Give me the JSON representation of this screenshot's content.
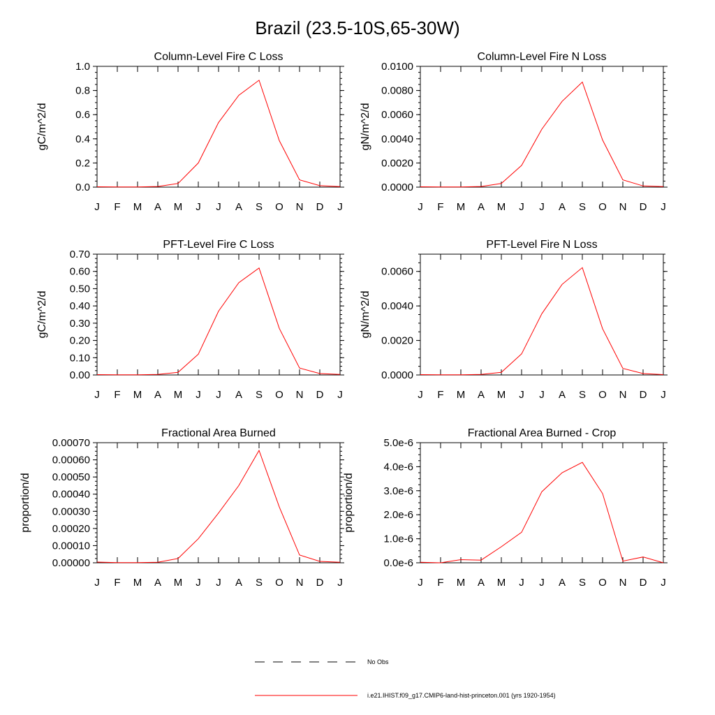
{
  "figure_title": "Brazil (23.5-10S,65-30W)",
  "legend": {
    "obs_label": "No Obs",
    "model_label": "i.e21.IHIST.f09_g17.CMIP6-land-hist-princeton.001 (yrs 1920-1954)",
    "obs_line_color": "#000000",
    "model_line_color": "#ff0000"
  },
  "chart_data": [
    {
      "type": "line",
      "title": "Column-Level Fire C Loss",
      "xlabel": "",
      "ylabel": "gC/m^2/d",
      "x": [
        "J",
        "F",
        "M",
        "A",
        "M",
        "J",
        "J",
        "A",
        "S",
        "O",
        "N",
        "D",
        "J"
      ],
      "ylim": [
        0,
        1.0
      ],
      "yticks": [
        "0.0",
        "0.2",
        "0.4",
        "0.6",
        "0.8",
        "1.0"
      ],
      "ytick_values": [
        0,
        0.2,
        0.4,
        0.6,
        0.8,
        1.0
      ],
      "series": [
        {
          "color": "#ff0000",
          "values": [
            0.003,
            0.002,
            0.002,
            0.005,
            0.03,
            0.2,
            0.535,
            0.76,
            0.885,
            0.385,
            0.06,
            0.012,
            0.004
          ]
        }
      ]
    },
    {
      "type": "line",
      "title": "Column-Level Fire N Loss",
      "xlabel": "",
      "ylabel": "gN/m^2/d",
      "x": [
        "J",
        "F",
        "M",
        "A",
        "M",
        "J",
        "J",
        "A",
        "S",
        "O",
        "N",
        "D",
        "J"
      ],
      "ylim": [
        0,
        0.01
      ],
      "yticks": [
        "0.0000",
        "0.0020",
        "0.0040",
        "0.0060",
        "0.0080",
        "0.0100"
      ],
      "ytick_values": [
        0,
        0.002,
        0.004,
        0.006,
        0.008,
        0.01
      ],
      "series": [
        {
          "color": "#ff0000",
          "values": [
            3e-05,
            2e-05,
            2e-05,
            5e-05,
            0.0003,
            0.0018,
            0.0048,
            0.0071,
            0.0087,
            0.0039,
            0.0006,
            0.0001,
            4e-05
          ]
        }
      ]
    },
    {
      "type": "line",
      "title": "PFT-Level Fire C Loss",
      "xlabel": "",
      "ylabel": "gC/m^2/d",
      "x": [
        "J",
        "F",
        "M",
        "A",
        "M",
        "J",
        "J",
        "A",
        "S",
        "O",
        "N",
        "D",
        "J"
      ],
      "ylim": [
        0,
        0.7
      ],
      "yticks": [
        "0.00",
        "0.10",
        "0.20",
        "0.30",
        "0.40",
        "0.50",
        "0.60",
        "0.70"
      ],
      "ytick_values": [
        0,
        0.1,
        0.2,
        0.3,
        0.4,
        0.5,
        0.6,
        0.7
      ],
      "series": [
        {
          "color": "#ff0000",
          "values": [
            0.002,
            0.001,
            0.001,
            0.003,
            0.015,
            0.12,
            0.37,
            0.535,
            0.62,
            0.27,
            0.04,
            0.008,
            0.003
          ]
        }
      ]
    },
    {
      "type": "line",
      "title": "PFT-Level Fire N Loss",
      "xlabel": "",
      "ylabel": "gN/m^2/d",
      "x": [
        "J",
        "F",
        "M",
        "A",
        "M",
        "J",
        "J",
        "A",
        "S",
        "O",
        "N",
        "D",
        "J"
      ],
      "ylim": [
        0,
        0.007
      ],
      "yticks": [
        "0.0000",
        "0.0020",
        "0.0040",
        "0.0060"
      ],
      "ytick_values": [
        0,
        0.002,
        0.004,
        0.006
      ],
      "series": [
        {
          "color": "#ff0000",
          "values": [
            2e-05,
            1e-05,
            1e-05,
            3e-05,
            0.00015,
            0.00122,
            0.00355,
            0.00525,
            0.00622,
            0.00268,
            0.00038,
            8e-05,
            2e-05
          ]
        }
      ]
    },
    {
      "type": "line",
      "title": "Fractional Area Burned",
      "xlabel": "",
      "ylabel": "proportion/d",
      "x": [
        "J",
        "F",
        "M",
        "A",
        "M",
        "J",
        "J",
        "A",
        "S",
        "O",
        "N",
        "D",
        "J"
      ],
      "ylim": [
        0,
        0.0007
      ],
      "yticks": [
        "0.00000",
        "0.00010",
        "0.00020",
        "0.00030",
        "0.00040",
        "0.00050",
        "0.00060",
        "0.00070"
      ],
      "ytick_values": [
        0,
        0.0001,
        0.0002,
        0.0003,
        0.0004,
        0.0005,
        0.0006,
        0.0007
      ],
      "series": [
        {
          "color": "#ff0000",
          "values": [
            4e-06,
            1e-06,
            1e-06,
            3e-06,
            2.5e-05,
            0.00014,
            0.00029,
            0.00045,
            0.000655,
            0.000325,
            4.5e-05,
            8e-06,
            3e-06
          ]
        }
      ]
    },
    {
      "type": "line",
      "title": "Fractional Area Burned - Crop",
      "xlabel": "",
      "ylabel": "proportion/d",
      "x": [
        "J",
        "F",
        "M",
        "A",
        "M",
        "J",
        "J",
        "A",
        "S",
        "O",
        "N",
        "D",
        "J"
      ],
      "ylim": [
        0,
        5e-06
      ],
      "yticks": [
        "0.0e-6",
        "1.0e-6",
        "2.0e-6",
        "3.0e-6",
        "4.0e-6",
        "5.0e-6"
      ],
      "ytick_values": [
        0,
        1e-06,
        2e-06,
        3e-06,
        4e-06,
        5e-06
      ],
      "series": [
        {
          "color": "#ff0000",
          "values": [
            2e-08,
            0.0,
            1.3e-07,
            1.1e-07,
            6.7e-07,
            1.27e-06,
            2.96e-06,
            3.75e-06,
            4.18e-06,
            2.88e-06,
            7e-08,
            2.4e-07,
            0.0
          ]
        }
      ]
    }
  ]
}
